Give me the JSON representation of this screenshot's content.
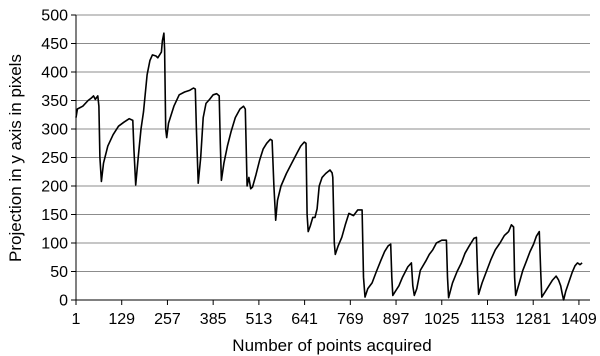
{
  "chart_data": {
    "type": "line",
    "title": "",
    "xlabel": "Number of points acquired",
    "ylabel": "Projection in y axis in pixels",
    "xlim": [
      1,
      1440
    ],
    "ylim": [
      0,
      500
    ],
    "x_ticks": [
      1,
      129,
      257,
      385,
      513,
      641,
      769,
      897,
      1025,
      1153,
      1281,
      1409
    ],
    "y_ticks": [
      0,
      50,
      100,
      150,
      200,
      250,
      300,
      350,
      400,
      450,
      500
    ],
    "grid": "horizontal",
    "legend": "none",
    "series_color": "#000000",
    "series": [
      {
        "points": [
          [
            1,
            320
          ],
          [
            5,
            335
          ],
          [
            20,
            340
          ],
          [
            35,
            350
          ],
          [
            45,
            355
          ],
          [
            50,
            358
          ],
          [
            55,
            352
          ],
          [
            62,
            358
          ],
          [
            65,
            340
          ],
          [
            68,
            250
          ],
          [
            72,
            208
          ],
          [
            78,
            240
          ],
          [
            90,
            270
          ],
          [
            105,
            290
          ],
          [
            120,
            305
          ],
          [
            135,
            312
          ],
          [
            150,
            318
          ],
          [
            160,
            315
          ],
          [
            163,
            265
          ],
          [
            168,
            202
          ],
          [
            175,
            250
          ],
          [
            183,
            300
          ],
          [
            190,
            330
          ],
          [
            200,
            395
          ],
          [
            208,
            420
          ],
          [
            215,
            430
          ],
          [
            225,
            428
          ],
          [
            230,
            425
          ],
          [
            240,
            435
          ],
          [
            243,
            455
          ],
          [
            247,
            468
          ],
          [
            249,
            440
          ],
          [
            252,
            300
          ],
          [
            255,
            285
          ],
          [
            260,
            310
          ],
          [
            275,
            340
          ],
          [
            290,
            360
          ],
          [
            305,
            365
          ],
          [
            320,
            368
          ],
          [
            330,
            372
          ],
          [
            335,
            370
          ],
          [
            338,
            300
          ],
          [
            343,
            205
          ],
          [
            350,
            250
          ],
          [
            357,
            320
          ],
          [
            365,
            345
          ],
          [
            375,
            352
          ],
          [
            385,
            360
          ],
          [
            395,
            362
          ],
          [
            402,
            358
          ],
          [
            405,
            275
          ],
          [
            408,
            210
          ],
          [
            415,
            240
          ],
          [
            425,
            270
          ],
          [
            435,
            295
          ],
          [
            447,
            320
          ],
          [
            460,
            335
          ],
          [
            470,
            340
          ],
          [
            475,
            335
          ],
          [
            480,
            200
          ],
          [
            485,
            215
          ],
          [
            490,
            195
          ],
          [
            495,
            198
          ],
          [
            505,
            220
          ],
          [
            515,
            245
          ],
          [
            525,
            265
          ],
          [
            535,
            275
          ],
          [
            545,
            282
          ],
          [
            550,
            280
          ],
          [
            555,
            200
          ],
          [
            560,
            140
          ],
          [
            565,
            175
          ],
          [
            575,
            200
          ],
          [
            590,
            222
          ],
          [
            605,
            240
          ],
          [
            620,
            258
          ],
          [
            630,
            270
          ],
          [
            640,
            277
          ],
          [
            645,
            275
          ],
          [
            648,
            150
          ],
          [
            651,
            120
          ],
          [
            657,
            130
          ],
          [
            664,
            145
          ],
          [
            670,
            145
          ],
          [
            676,
            160
          ],
          [
            682,
            200
          ],
          [
            690,
            215
          ],
          [
            700,
            222
          ],
          [
            712,
            228
          ],
          [
            718,
            223
          ],
          [
            720,
            215
          ],
          [
            724,
            100
          ],
          [
            727,
            80
          ],
          [
            735,
            95
          ],
          [
            745,
            110
          ],
          [
            755,
            132
          ],
          [
            765,
            152
          ],
          [
            778,
            148
          ],
          [
            790,
            158
          ],
          [
            802,
            158
          ],
          [
            806,
            40
          ],
          [
            810,
            5
          ],
          [
            818,
            20
          ],
          [
            830,
            30
          ],
          [
            842,
            50
          ],
          [
            855,
            70
          ],
          [
            865,
            85
          ],
          [
            875,
            95
          ],
          [
            882,
            98
          ],
          [
            885,
            40
          ],
          [
            888,
            8
          ],
          [
            895,
            15
          ],
          [
            905,
            25
          ],
          [
            915,
            40
          ],
          [
            930,
            58
          ],
          [
            940,
            65
          ],
          [
            944,
            25
          ],
          [
            948,
            8
          ],
          [
            955,
            20
          ],
          [
            965,
            52
          ],
          [
            980,
            68
          ],
          [
            990,
            80
          ],
          [
            1000,
            88
          ],
          [
            1010,
            100
          ],
          [
            1025,
            105
          ],
          [
            1038,
            105
          ],
          [
            1041,
            40
          ],
          [
            1044,
            4
          ],
          [
            1055,
            30
          ],
          [
            1068,
            50
          ],
          [
            1080,
            65
          ],
          [
            1090,
            82
          ],
          [
            1102,
            95
          ],
          [
            1115,
            108
          ],
          [
            1122,
            110
          ],
          [
            1125,
            50
          ],
          [
            1128,
            10
          ],
          [
            1138,
            30
          ],
          [
            1150,
            50
          ],
          [
            1162,
            70
          ],
          [
            1175,
            88
          ],
          [
            1188,
            100
          ],
          [
            1200,
            113
          ],
          [
            1212,
            120
          ],
          [
            1220,
            132
          ],
          [
            1226,
            128
          ],
          [
            1229,
            40
          ],
          [
            1232,
            8
          ],
          [
            1242,
            30
          ],
          [
            1252,
            52
          ],
          [
            1262,
            68
          ],
          [
            1272,
            85
          ],
          [
            1282,
            98
          ],
          [
            1290,
            112
          ],
          [
            1298,
            120
          ],
          [
            1302,
            50
          ],
          [
            1305,
            5
          ],
          [
            1315,
            15
          ],
          [
            1325,
            25
          ],
          [
            1335,
            35
          ],
          [
            1345,
            42
          ],
          [
            1352,
            35
          ],
          [
            1358,
            25
          ],
          [
            1362,
            12
          ],
          [
            1366,
            0
          ],
          [
            1372,
            15
          ],
          [
            1380,
            30
          ],
          [
            1390,
            48
          ],
          [
            1398,
            60
          ],
          [
            1405,
            65
          ],
          [
            1412,
            62
          ],
          [
            1418,
            65
          ]
        ]
      }
    ]
  }
}
